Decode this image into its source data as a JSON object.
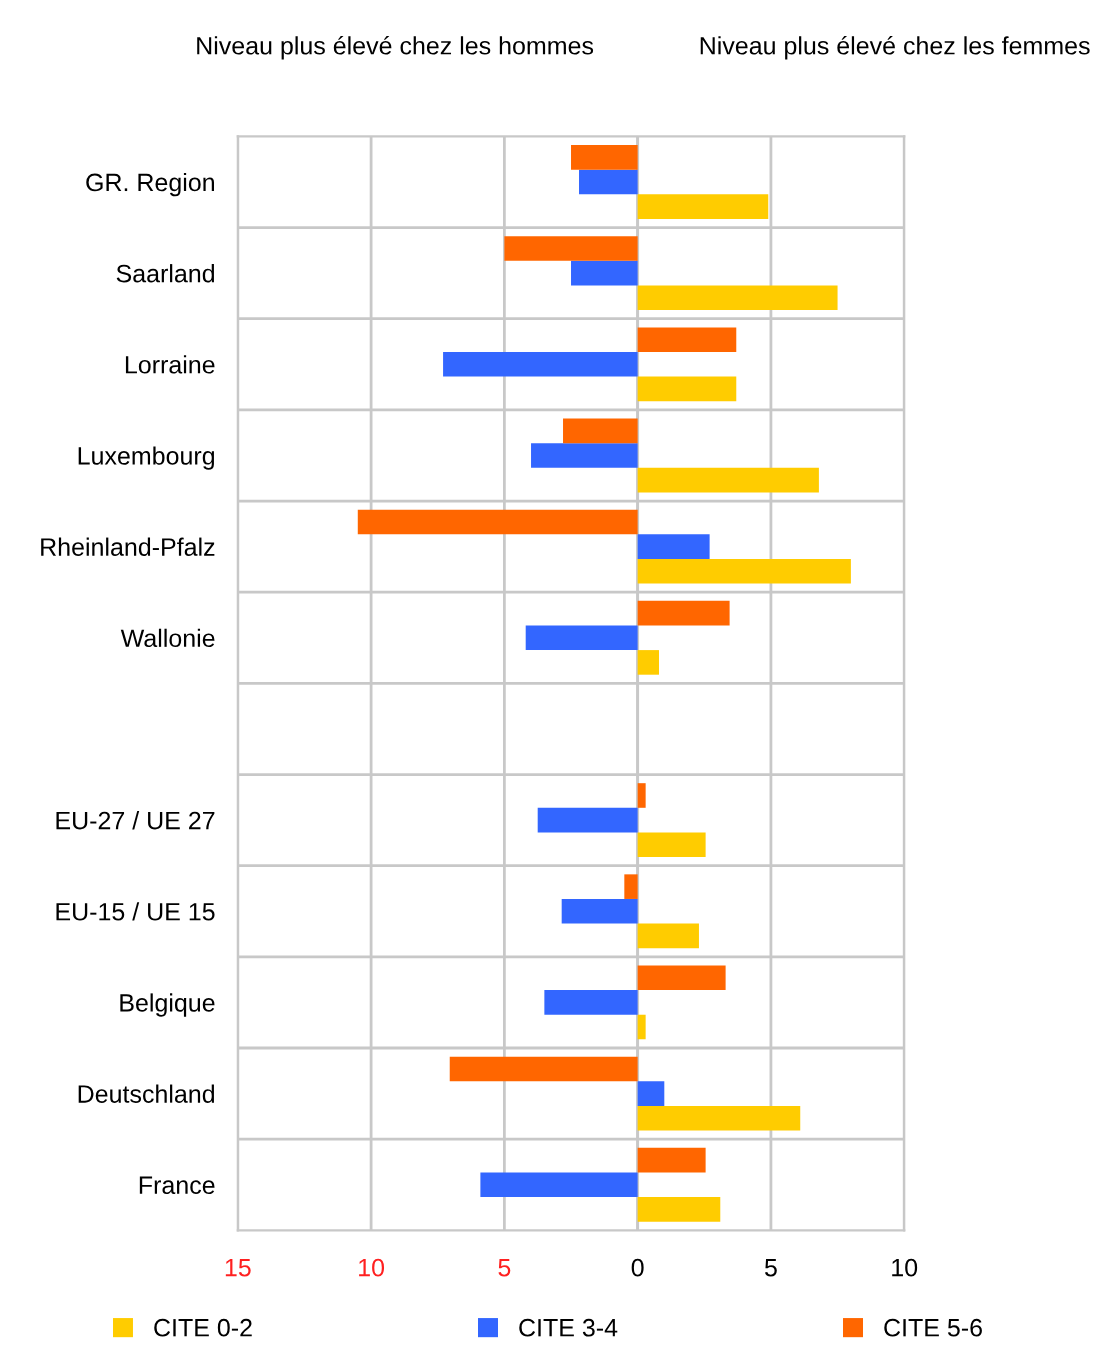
{
  "chart_data": {
    "type": "bar",
    "orientation": "horizontal",
    "annotations": [
      "Niveau plus élevé chez les hommes",
      "Niveau plus élevé chez les femmes"
    ],
    "categories": [
      "GR. Region",
      "Saarland",
      "Lorraine",
      "Luxembourg",
      "Rheinland-Pfalz",
      "Wallonie",
      null,
      "EU-27 / UE 27",
      "EU-15 / UE 15",
      "Belgique",
      "Deutschland",
      "France"
    ],
    "series": [
      {
        "name": "CITE 0-2",
        "color": "#ffcc00",
        "values": [
          4.9,
          7.5,
          3.7,
          6.8,
          8.0,
          0.8,
          null,
          2.55,
          2.3,
          0.3,
          6.1,
          3.1
        ]
      },
      {
        "name": "CITE 3-4",
        "color": "#3366ff",
        "values": [
          -2.2,
          -2.5,
          -7.3,
          -4.0,
          2.7,
          -4.2,
          null,
          -3.75,
          -2.85,
          -3.5,
          1.0,
          -5.9
        ]
      },
      {
        "name": "CITE 5-6",
        "color": "#ff6600",
        "values": [
          -2.5,
          -5.0,
          3.7,
          -2.8,
          -10.5,
          3.45,
          null,
          0.3,
          -0.5,
          3.3,
          -7.05,
          2.55
        ]
      }
    ],
    "xlim": [
      -15,
      10
    ],
    "xticks": [
      {
        "value": -15,
        "label": "15"
      },
      {
        "value": -10,
        "label": "10"
      },
      {
        "value": -5,
        "label": "5"
      },
      0,
      5,
      10
    ],
    "grid": true,
    "legend": "bottom"
  }
}
